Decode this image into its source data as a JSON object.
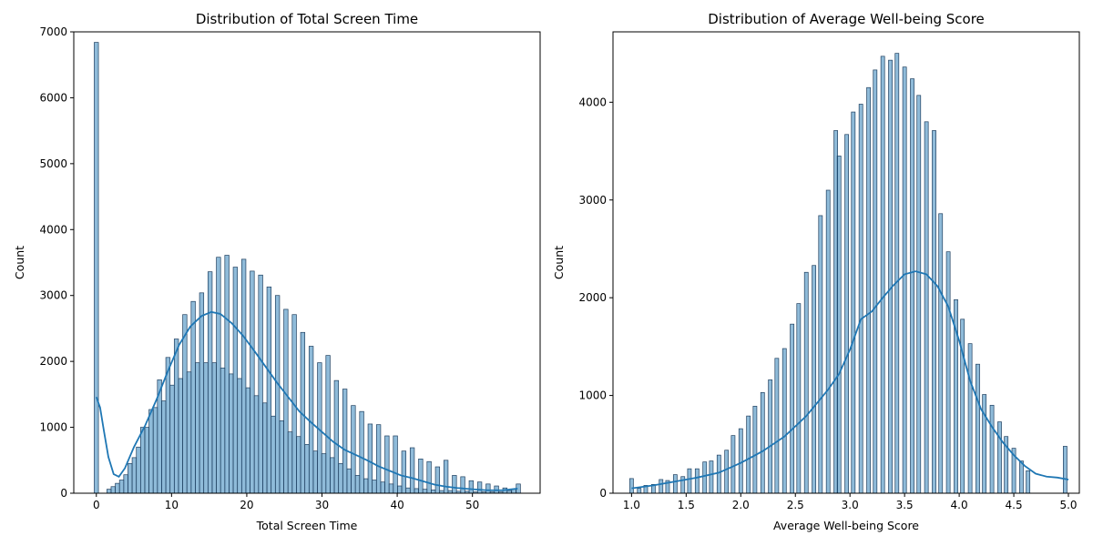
{
  "chart_data": [
    {
      "type": "bar",
      "subtype": "histogram-with-kde",
      "title": "Distribution of Total Screen Time",
      "xlabel": "Total Screen Time",
      "ylabel": "Count",
      "xlim": [
        -3,
        59
      ],
      "ylim": [
        0,
        7000
      ],
      "xticks": [
        0,
        10,
        20,
        30,
        40,
        50
      ],
      "yticks": [
        0,
        1000,
        2000,
        3000,
        4000,
        5000,
        6000,
        7000
      ],
      "bin_width": 0.56,
      "bins": [
        [
          0,
          6840
        ],
        [
          1.68,
          60
        ],
        [
          2.24,
          100
        ],
        [
          2.8,
          150
        ],
        [
          3.36,
          200
        ],
        [
          3.92,
          280
        ],
        [
          4.48,
          450
        ],
        [
          5.04,
          540
        ],
        [
          5.6,
          700
        ],
        [
          6.16,
          1000
        ],
        [
          6.72,
          1000
        ],
        [
          7.28,
          1270
        ],
        [
          7.84,
          1300
        ],
        [
          8.4,
          1720
        ],
        [
          8.96,
          1400
        ],
        [
          9.52,
          2060
        ],
        [
          10.08,
          1640
        ],
        [
          10.64,
          2340
        ],
        [
          11.2,
          1740
        ],
        [
          11.76,
          2710
        ],
        [
          12.32,
          1840
        ],
        [
          12.88,
          2910
        ],
        [
          13.44,
          1980
        ],
        [
          14.0,
          3040
        ],
        [
          14.56,
          1980
        ],
        [
          15.12,
          3360
        ],
        [
          15.68,
          1980
        ],
        [
          16.24,
          3580
        ],
        [
          16.8,
          1900
        ],
        [
          17.36,
          3610
        ],
        [
          17.92,
          1810
        ],
        [
          18.48,
          3430
        ],
        [
          19.04,
          1740
        ],
        [
          19.6,
          3550
        ],
        [
          20.16,
          1600
        ],
        [
          20.72,
          3370
        ],
        [
          21.28,
          1480
        ],
        [
          21.84,
          3310
        ],
        [
          22.4,
          1370
        ],
        [
          22.96,
          3130
        ],
        [
          23.52,
          1170
        ],
        [
          24.08,
          3000
        ],
        [
          24.64,
          1100
        ],
        [
          25.2,
          2790
        ],
        [
          25.76,
          930
        ],
        [
          26.32,
          2710
        ],
        [
          26.88,
          860
        ],
        [
          27.44,
          2440
        ],
        [
          28.0,
          740
        ],
        [
          28.56,
          2230
        ],
        [
          29.12,
          640
        ],
        [
          29.68,
          1980
        ],
        [
          30.24,
          600
        ],
        [
          30.8,
          2090
        ],
        [
          31.36,
          540
        ],
        [
          31.92,
          1710
        ],
        [
          32.48,
          450
        ],
        [
          33.04,
          1580
        ],
        [
          33.6,
          370
        ],
        [
          34.16,
          1330
        ],
        [
          34.72,
          270
        ],
        [
          35.28,
          1240
        ],
        [
          35.84,
          220
        ],
        [
          36.4,
          1050
        ],
        [
          36.96,
          200
        ],
        [
          37.52,
          1040
        ],
        [
          38.08,
          170
        ],
        [
          38.64,
          870
        ],
        [
          39.2,
          140
        ],
        [
          39.76,
          870
        ],
        [
          40.32,
          110
        ],
        [
          40.88,
          640
        ],
        [
          41.44,
          80
        ],
        [
          42.0,
          690
        ],
        [
          42.56,
          70
        ],
        [
          43.12,
          520
        ],
        [
          43.68,
          60
        ],
        [
          44.24,
          480
        ],
        [
          44.8,
          50
        ],
        [
          45.36,
          400
        ],
        [
          45.92,
          40
        ],
        [
          46.48,
          500
        ],
        [
          47.04,
          40
        ],
        [
          47.6,
          270
        ],
        [
          48.16,
          30
        ],
        [
          48.72,
          250
        ],
        [
          49.28,
          30
        ],
        [
          49.84,
          190
        ],
        [
          50.4,
          20
        ],
        [
          50.96,
          170
        ],
        [
          51.52,
          20
        ],
        [
          52.08,
          140
        ],
        [
          52.64,
          20
        ],
        [
          53.2,
          110
        ],
        [
          53.76,
          20
        ],
        [
          54.32,
          80
        ],
        [
          54.9,
          40
        ],
        [
          55.5,
          60
        ],
        [
          56.1,
          140
        ]
      ],
      "kde": [
        [
          0,
          1460
        ],
        [
          0.5,
          1300
        ],
        [
          1,
          950
        ],
        [
          1.6,
          550
        ],
        [
          2.3,
          290
        ],
        [
          3,
          250
        ],
        [
          3.8,
          380
        ],
        [
          5,
          700
        ],
        [
          6.5,
          1030
        ],
        [
          8,
          1420
        ],
        [
          9.5,
          1850
        ],
        [
          11,
          2250
        ],
        [
          12.5,
          2530
        ],
        [
          14,
          2690
        ],
        [
          15.3,
          2750
        ],
        [
          16.5,
          2720
        ],
        [
          18,
          2580
        ],
        [
          19.5,
          2390
        ],
        [
          21,
          2160
        ],
        [
          22.5,
          1920
        ],
        [
          24,
          1680
        ],
        [
          25.5,
          1460
        ],
        [
          27,
          1240
        ],
        [
          28.5,
          1080
        ],
        [
          30,
          930
        ],
        [
          31.5,
          780
        ],
        [
          33,
          660
        ],
        [
          34.5,
          580
        ],
        [
          36,
          500
        ],
        [
          37.5,
          410
        ],
        [
          39,
          340
        ],
        [
          40.5,
          270
        ],
        [
          42,
          230
        ],
        [
          43.5,
          180
        ],
        [
          45,
          130
        ],
        [
          46.5,
          100
        ],
        [
          48,
          80
        ],
        [
          50,
          60
        ],
        [
          52,
          45
        ],
        [
          54,
          45
        ],
        [
          56,
          70
        ]
      ]
    },
    {
      "type": "bar",
      "subtype": "histogram-with-kde",
      "title": "Distribution of Average Well-being Score",
      "xlabel": "Average Well-being Score",
      "ylabel": "Count",
      "xlim": [
        0.83,
        5.1
      ],
      "ylim": [
        0,
        4720
      ],
      "xticks": [
        1.0,
        1.5,
        2.0,
        2.5,
        3.0,
        3.5,
        4.0,
        4.5,
        5.0
      ],
      "yticks": [
        0,
        1000,
        2000,
        3000,
        4000
      ],
      "bin_width": 0.034,
      "bins": [
        [
          1.0,
          150
        ],
        [
          1.07,
          50
        ],
        [
          1.13,
          80
        ],
        [
          1.2,
          90
        ],
        [
          1.27,
          140
        ],
        [
          1.33,
          130
        ],
        [
          1.4,
          190
        ],
        [
          1.47,
          170
        ],
        [
          1.53,
          250
        ],
        [
          1.6,
          250
        ],
        [
          1.67,
          320
        ],
        [
          1.73,
          330
        ],
        [
          1.8,
          390
        ],
        [
          1.87,
          440
        ],
        [
          1.93,
          590
        ],
        [
          2.0,
          660
        ],
        [
          2.07,
          790
        ],
        [
          2.13,
          890
        ],
        [
          2.2,
          1030
        ],
        [
          2.27,
          1160
        ],
        [
          2.33,
          1380
        ],
        [
          2.4,
          1480
        ],
        [
          2.47,
          1730
        ],
        [
          2.53,
          1940
        ],
        [
          2.6,
          2260
        ],
        [
          2.67,
          2330
        ],
        [
          2.73,
          2840
        ],
        [
          2.8,
          3100
        ],
        [
          2.87,
          3710
        ],
        [
          2.9,
          3450
        ],
        [
          2.97,
          3670
        ],
        [
          3.03,
          3900
        ],
        [
          3.1,
          3980
        ],
        [
          3.17,
          4150
        ],
        [
          3.23,
          4330
        ],
        [
          3.3,
          4470
        ],
        [
          3.37,
          4430
        ],
        [
          3.43,
          4500
        ],
        [
          3.5,
          4360
        ],
        [
          3.57,
          4240
        ],
        [
          3.63,
          4070
        ],
        [
          3.7,
          3800
        ],
        [
          3.77,
          3710
        ],
        [
          3.83,
          2860
        ],
        [
          3.9,
          2470
        ],
        [
          3.97,
          1980
        ],
        [
          4.03,
          1780
        ],
        [
          4.1,
          1530
        ],
        [
          4.17,
          1320
        ],
        [
          4.23,
          1010
        ],
        [
          4.3,
          900
        ],
        [
          4.37,
          730
        ],
        [
          4.43,
          580
        ],
        [
          4.5,
          460
        ],
        [
          4.57,
          330
        ],
        [
          4.63,
          230
        ],
        [
          4.97,
          480
        ]
      ],
      "kde": [
        [
          1.0,
          50
        ],
        [
          1.2,
          80
        ],
        [
          1.4,
          120
        ],
        [
          1.6,
          160
        ],
        [
          1.8,
          210
        ],
        [
          2.0,
          310
        ],
        [
          2.2,
          430
        ],
        [
          2.4,
          580
        ],
        [
          2.6,
          790
        ],
        [
          2.8,
          1060
        ],
        [
          2.9,
          1220
        ],
        [
          3.0,
          1470
        ],
        [
          3.1,
          1780
        ],
        [
          3.2,
          1860
        ],
        [
          3.3,
          2000
        ],
        [
          3.4,
          2130
        ],
        [
          3.5,
          2240
        ],
        [
          3.6,
          2270
        ],
        [
          3.7,
          2240
        ],
        [
          3.8,
          2120
        ],
        [
          3.9,
          1910
        ],
        [
          4.0,
          1560
        ],
        [
          4.1,
          1150
        ],
        [
          4.2,
          860
        ],
        [
          4.3,
          680
        ],
        [
          4.4,
          520
        ],
        [
          4.5,
          390
        ],
        [
          4.6,
          280
        ],
        [
          4.7,
          200
        ],
        [
          4.8,
          170
        ],
        [
          4.9,
          160
        ],
        [
          5.0,
          140
        ]
      ]
    }
  ]
}
